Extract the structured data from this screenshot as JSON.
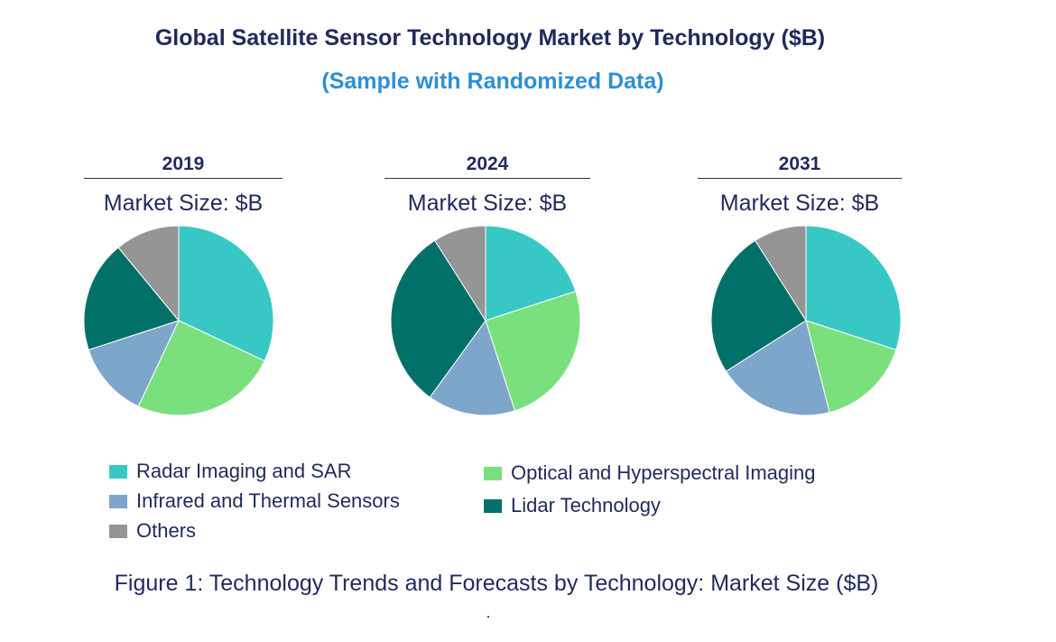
{
  "title": "Global Satellite Sensor Technology Market by Technology ($B)",
  "subtitle": "(Sample with Randomized Data)",
  "caption": "Figure 1: Technology Trends and Forecasts by Technology: Market Size ($B)",
  "chart_data": {
    "type": "pie",
    "categories": [
      "Radar Imaging and SAR",
      "Optical and Hyperspectral Imaging",
      "Infrared and Thermal Sensors",
      "Lidar Technology",
      "Others"
    ],
    "colors": [
      "#37c8c5",
      "#7ae07e",
      "#7ea6cb",
      "#007068",
      "#959595"
    ],
    "pies": [
      {
        "year": "2019",
        "market_label": "Market Size: $B",
        "values": [
          32,
          25,
          13,
          19,
          11
        ]
      },
      {
        "year": "2024",
        "market_label": "Market Size: $B",
        "values": [
          20,
          25,
          15,
          31,
          9
        ]
      },
      {
        "year": "2031",
        "market_label": "Market Size: $B",
        "values": [
          30,
          16,
          20,
          25,
          9
        ]
      }
    ],
    "legend": [
      {
        "label": "Radar Imaging and SAR",
        "color": "#37c8c5"
      },
      {
        "label": "Optical and Hyperspectral Imaging",
        "color": "#7ae07e"
      },
      {
        "label": "Infrared and Thermal Sensors",
        "color": "#7ea6cb"
      },
      {
        "label": "Lidar Technology",
        "color": "#007068"
      },
      {
        "label": "Others",
        "color": "#959595"
      }
    ]
  }
}
